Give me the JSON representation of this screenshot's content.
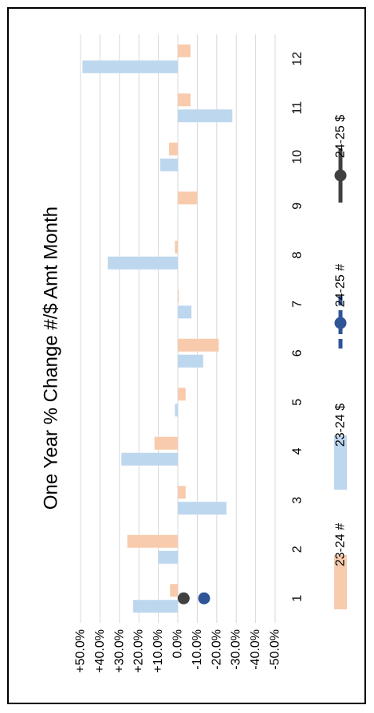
{
  "chart_data": {
    "type": "bar",
    "orientation": "rotated-90-clockwise",
    "title": "One Year % Change #/$ Amt Month",
    "categories": [
      "1",
      "2",
      "3",
      "4",
      "5",
      "6",
      "7",
      "8",
      "9",
      "10",
      "11",
      "12"
    ],
    "series": [
      {
        "name": "23-24 #",
        "kind": "bar",
        "color": "#f8cbad",
        "values": [
          4.0,
          26.0,
          -4.0,
          12.0,
          -4.0,
          -21.0,
          -0.5,
          1.5,
          -10.0,
          4.5,
          -6.5,
          -6.5
        ]
      },
      {
        "name": "23-24 $",
        "kind": "bar",
        "color": "#bdd7ee",
        "values": [
          23.0,
          10.0,
          -25.0,
          29.0,
          1.5,
          -13.0,
          -7.0,
          36.0,
          0,
          9.0,
          -28.0,
          49.0
        ]
      },
      {
        "name": "24-25 #",
        "kind": "line",
        "color": "#2f5597",
        "values": [
          -13.5,
          null,
          null,
          null,
          null,
          null,
          null,
          null,
          null,
          null,
          null,
          null
        ]
      },
      {
        "name": "24-25 $",
        "kind": "line",
        "color": "#404040",
        "values": [
          -3.0,
          null,
          null,
          null,
          null,
          null,
          null,
          null,
          null,
          null,
          null,
          null
        ]
      }
    ],
    "ylim": [
      -50,
      50
    ],
    "yticks": [
      50,
      40,
      30,
      20,
      10,
      0,
      -10,
      -20,
      -30,
      -40,
      -50
    ],
    "ytick_labels": [
      "+50.0%",
      "+40.0%",
      "+30.0%",
      "+20.0%",
      "+10.0%",
      "0.0%",
      "-10.0%",
      "-20.0%",
      "-30.0%",
      "-40.0%",
      "-50.0%"
    ],
    "grid": true,
    "legend_position": "bottom"
  }
}
